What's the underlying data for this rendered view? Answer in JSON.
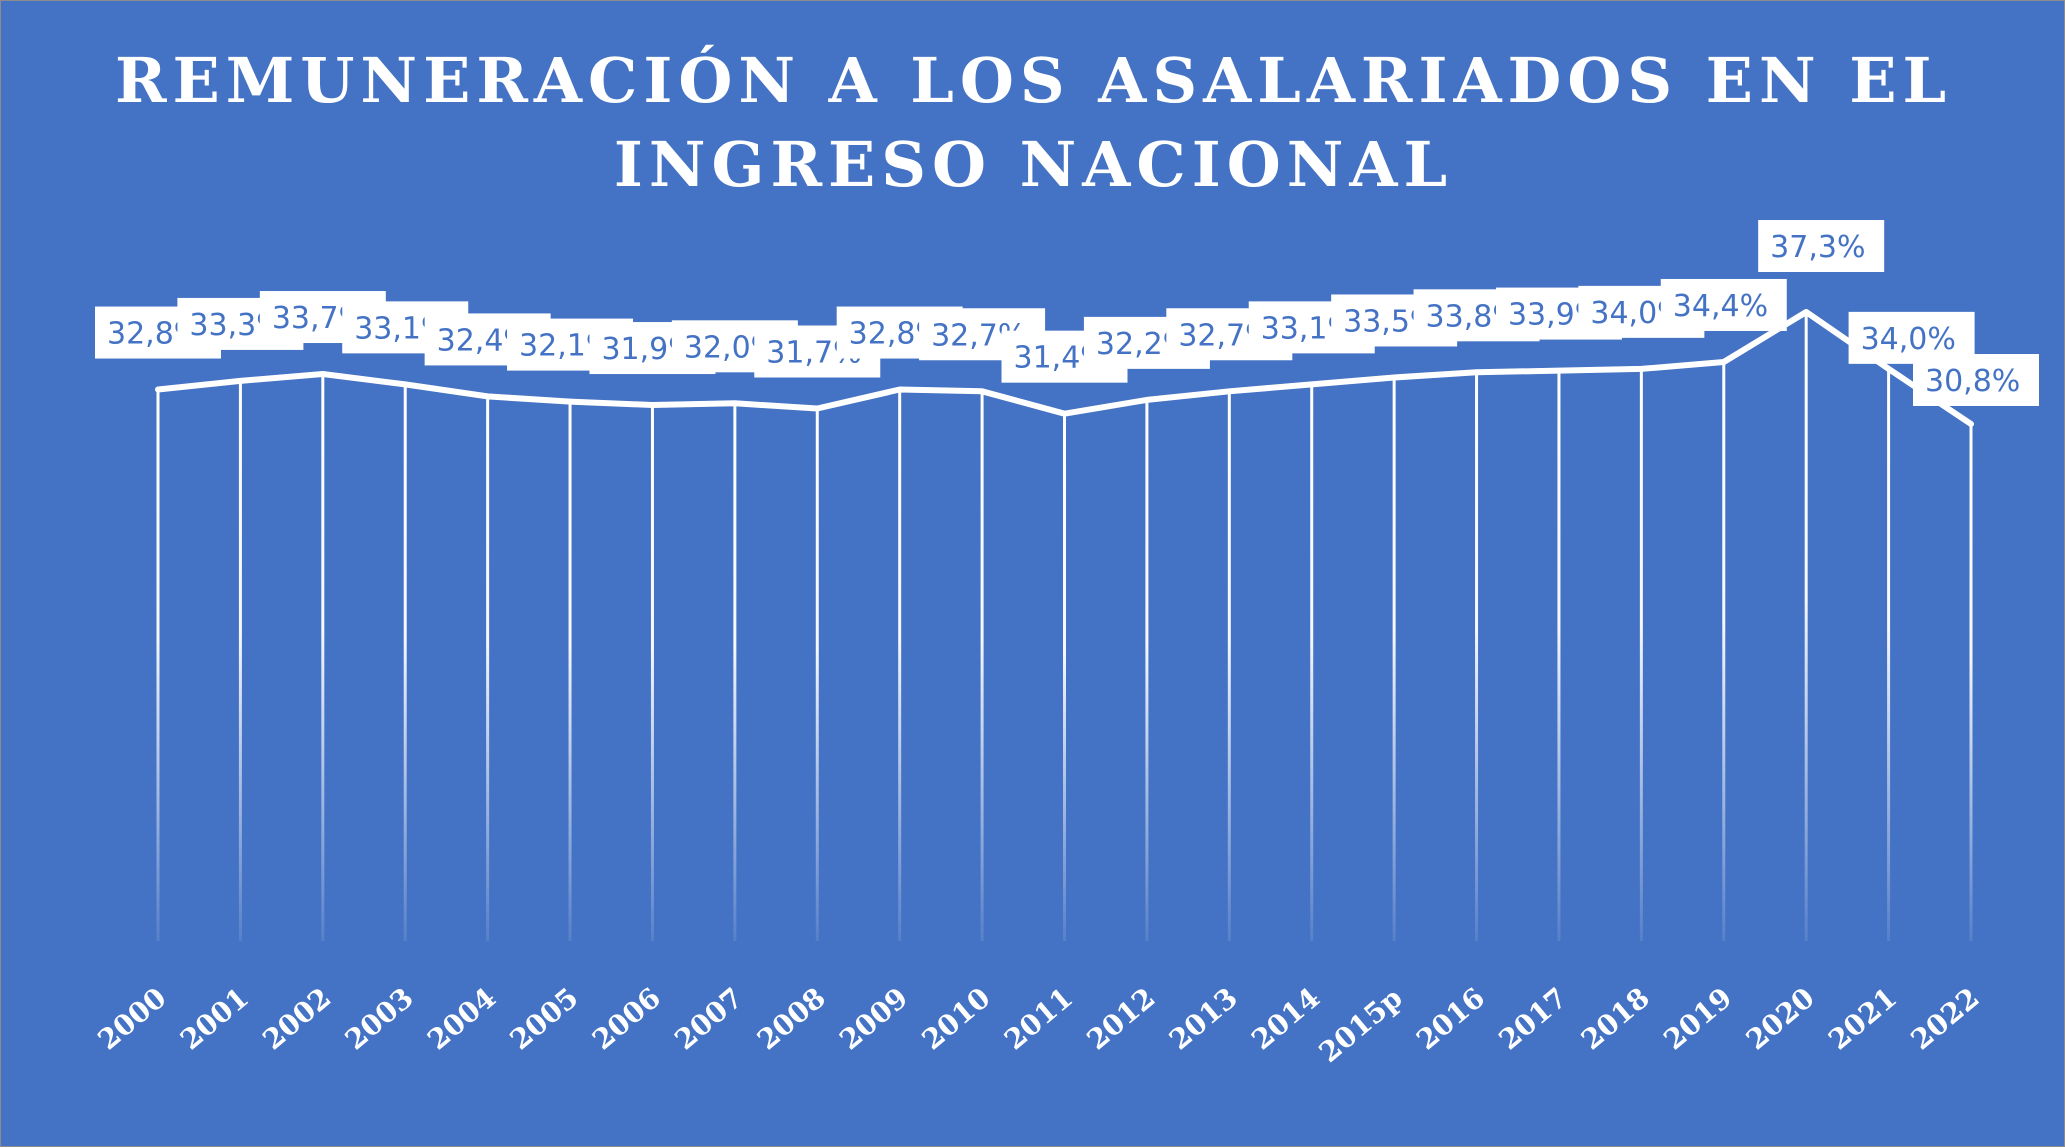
{
  "chart_data": {
    "type": "line",
    "title": "REMUNERACIÓN A LOS ASALARIADOS EN EL INGRESO NACIONAL",
    "title_lines": [
      "REMUNERACIÓN A LOS ASALARIADOS EN EL",
      "INGRESO NACIONAL"
    ],
    "categories": [
      "2000",
      "2001",
      "2002",
      "2003",
      "2004",
      "2005",
      "2006",
      "2007",
      "2008",
      "2009",
      "2010",
      "2011",
      "2012",
      "2013",
      "2014",
      "2015p",
      "2016",
      "2017",
      "2018",
      "2019",
      "2020",
      "2021",
      "2022"
    ],
    "series": [
      {
        "values": [
          32.8,
          33.3,
          33.7,
          33.1,
          32.4,
          32.1,
          31.9,
          32.0,
          31.7,
          32.8,
          32.7,
          31.4,
          32.2,
          32.7,
          33.1,
          33.5,
          33.8,
          33.9,
          34.0,
          34.4,
          37.3,
          34.0,
          30.8
        ],
        "labels": [
          "32,8%",
          "33,3%",
          "33,7%",
          "33,1%",
          "32,4%",
          "32,1%",
          "31,9%",
          "32,0%",
          "31,7%",
          "32,8%",
          "32,7%",
          "31,4%",
          "32,2%",
          "32,7%",
          "33,1%",
          "33,5%",
          "33,8%",
          "33,9%",
          "34,0%",
          "34,4%",
          "37,3%",
          "34,0%",
          "30,8%"
        ]
      }
    ],
    "xlabel": "",
    "ylabel": "",
    "ylim": [
      0,
      42
    ],
    "grid": false,
    "drop_lines": true,
    "legend": "none",
    "colors": {
      "background": "#4472c4",
      "line": "#ffffff",
      "label_box": "#ffffff",
      "label_text": "#4472c4"
    }
  }
}
